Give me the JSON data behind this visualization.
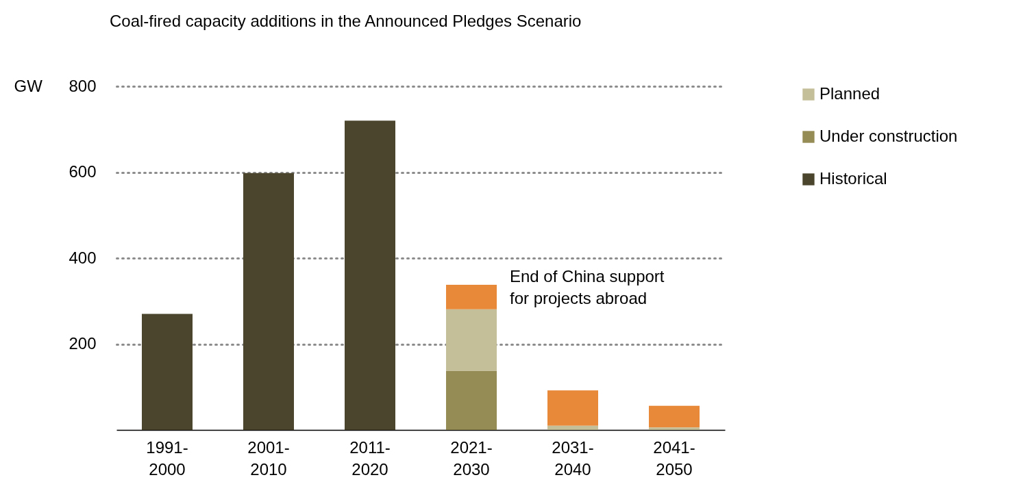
{
  "chart_data": {
    "type": "bar",
    "title": "Coal-fired capacity additions in the Announced Pledges Scenario",
    "ylabel": "GW",
    "categories": [
      "1991-2000",
      "2001-2010",
      "2011-2020",
      "2021-2030",
      "2031-2040",
      "2041-2050"
    ],
    "stacked": true,
    "series": [
      {
        "name": "Historical",
        "color": "#4a452c",
        "values": [
          270,
          598,
          720,
          null,
          null,
          null
        ]
      },
      {
        "name": "Under construction",
        "color": "#958b54",
        "values": [
          null,
          null,
          null,
          138,
          null,
          null
        ]
      },
      {
        "name": "Planned",
        "color": "#c5bf99",
        "values": [
          null,
          null,
          null,
          143,
          10,
          6
        ]
      },
      {
        "color": "#e8893a",
        "values": [
          null,
          null,
          null,
          57,
          82,
          50
        ]
      }
    ],
    "ylim": [
      0,
      800
    ],
    "yticks": [
      200,
      400,
      600,
      800
    ],
    "grid": "y",
    "legend": "right",
    "annotations": [
      {
        "text": "End of China support\nfor projects abroad",
        "x": "2021-2030",
        "y": 340
      }
    ]
  }
}
